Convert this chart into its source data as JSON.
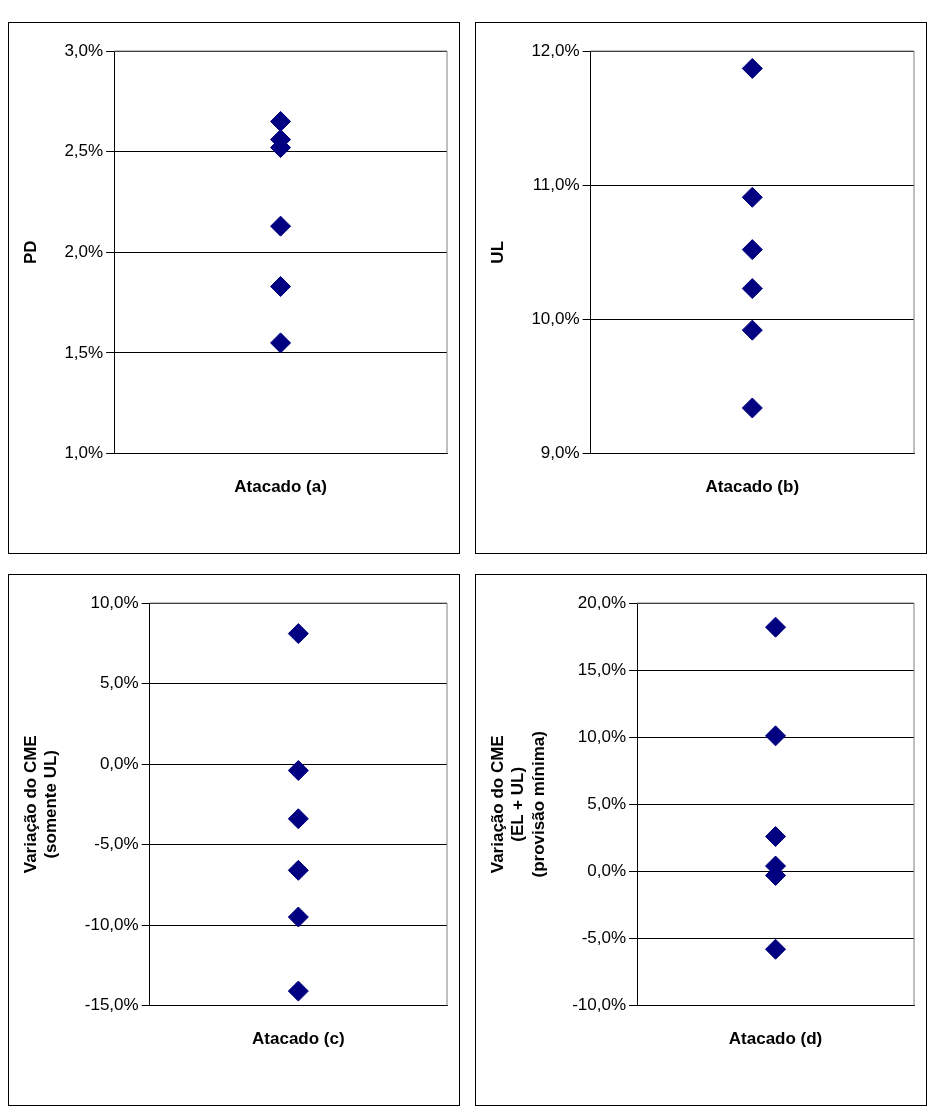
{
  "chart_data": [
    {
      "type": "scatter",
      "ylabel": "PD",
      "categories": [
        "Atacado (a)"
      ],
      "series": [
        {
          "color": "#000080",
          "x": [
            "Atacado (a)",
            "Atacado (a)",
            "Atacado (a)",
            "Atacado (a)",
            "Atacado (a)",
            "Atacado (a)"
          ],
          "values": [
            2.65,
            2.56,
            2.52,
            2.13,
            1.83,
            1.55
          ]
        }
      ],
      "ylim": [
        1,
        3
      ],
      "yticks": [
        {
          "value": 1,
          "label": "1,0%"
        },
        {
          "value": 1.5,
          "label": "1,5%"
        },
        {
          "value": 2,
          "label": "2,0%"
        },
        {
          "value": 2.5,
          "label": "2,5%"
        },
        {
          "value": 3,
          "label": "3,0%"
        }
      ],
      "grid": "y",
      "legend": false,
      "marker": "diamond"
    },
    {
      "type": "scatter",
      "ylabel": "UL",
      "categories": [
        "Atacado (b)"
      ],
      "series": [
        {
          "color": "#000080",
          "x": [
            "Atacado (b)",
            "Atacado (b)",
            "Atacado (b)",
            "Atacado (b)",
            "Atacado (b)",
            "Atacado (b)"
          ],
          "values": [
            11.87,
            10.91,
            10.52,
            10.23,
            9.92,
            9.34
          ]
        }
      ],
      "ylim": [
        9,
        12
      ],
      "yticks": [
        {
          "value": 9,
          "label": "9,0%"
        },
        {
          "value": 10,
          "label": "10,0%"
        },
        {
          "value": 11,
          "label": "11,0%"
        },
        {
          "value": 12,
          "label": "12,0%"
        }
      ],
      "grid": "y",
      "legend": false,
      "marker": "diamond"
    },
    {
      "type": "scatter",
      "ylabel": "Variação do CME\n(somente UL)",
      "categories": [
        "Atacado (c)"
      ],
      "series": [
        {
          "color": "#000080",
          "x": [
            "Atacado (c)",
            "Atacado (c)",
            "Atacado (c)",
            "Atacado (c)",
            "Atacado (c)",
            "Atacado (c)"
          ],
          "values": [
            8.1,
            -0.4,
            -3.4,
            -6.6,
            -9.5,
            -14.1
          ]
        }
      ],
      "ylim": [
        -15,
        10
      ],
      "yticks": [
        {
          "value": -15,
          "label": "-15,0%"
        },
        {
          "value": -10,
          "label": "-10,0%"
        },
        {
          "value": -5,
          "label": "-5,0%"
        },
        {
          "value": 0,
          "label": "0,0%"
        },
        {
          "value": 5,
          "label": "5,0%"
        },
        {
          "value": 10,
          "label": "10,0%"
        }
      ],
      "grid": "y",
      "legend": false,
      "marker": "diamond"
    },
    {
      "type": "scatter",
      "ylabel": "Variação do CME\n(EL + UL)\n(provisão mínima)",
      "categories": [
        "Atacado (d)"
      ],
      "series": [
        {
          "color": "#000080",
          "x": [
            "Atacado (d)",
            "Atacado (d)",
            "Atacado (d)",
            "Atacado (d)",
            "Atacado (d)",
            "Atacado (d)"
          ],
          "values": [
            18.2,
            10.1,
            2.6,
            0.4,
            -0.3,
            -5.8
          ]
        }
      ],
      "ylim": [
        -10,
        20
      ],
      "yticks": [
        {
          "value": -10,
          "label": "-10,0%"
        },
        {
          "value": -5,
          "label": "-5,0%"
        },
        {
          "value": 0,
          "label": "0,0%"
        },
        {
          "value": 5,
          "label": "5,0%"
        },
        {
          "value": 10,
          "label": "10,0%"
        },
        {
          "value": 15,
          "label": "15,0%"
        },
        {
          "value": 20,
          "label": "20,0%"
        }
      ],
      "grid": "y",
      "legend": false,
      "marker": "diamond"
    }
  ]
}
